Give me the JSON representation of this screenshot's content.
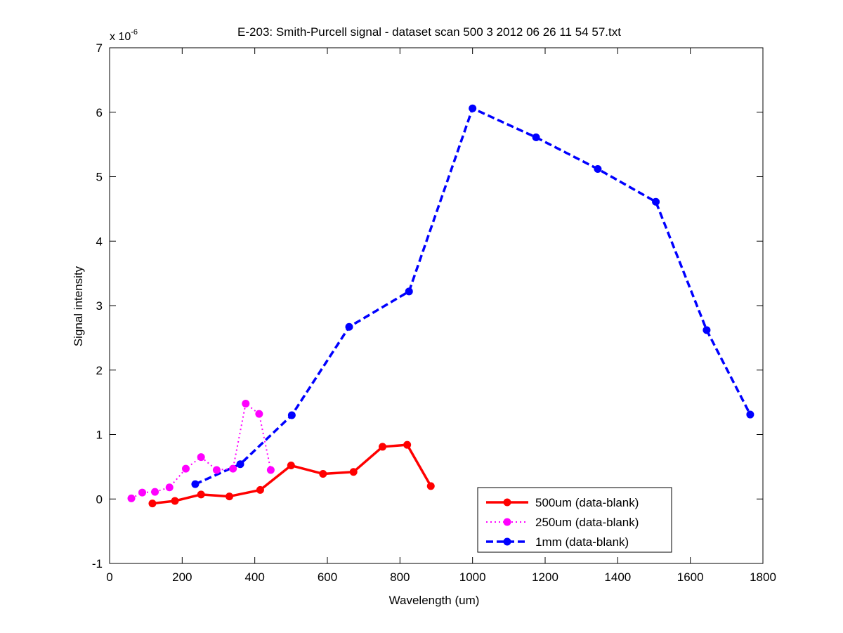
{
  "chart_data": {
    "type": "line",
    "title": "E-203: Smith-Purcell signal - dataset scan 500 3 2012 06 26 11 54 57.txt",
    "xlabel": "Wavelength (um)",
    "ylabel": "Signal intensity",
    "y_multiplier_label": "x 10",
    "y_multiplier_exponent": "-6",
    "xlim": [
      0,
      1800
    ],
    "ylim": [
      -1,
      7
    ],
    "x_ticks": [
      0,
      200,
      400,
      600,
      800,
      1000,
      1200,
      1400,
      1600,
      1800
    ],
    "y_ticks": [
      -1,
      0,
      1,
      2,
      3,
      4,
      5,
      6,
      7
    ],
    "grid": false,
    "legend_position": "bottom-right",
    "series": [
      {
        "name": "500um (data-blank)",
        "color": "#ff0000",
        "line_style": "solid",
        "x": [
          118,
          180,
          252,
          330,
          415,
          500,
          588,
          672,
          752,
          820,
          885
        ],
        "y": [
          -0.07,
          -0.03,
          0.07,
          0.04,
          0.14,
          0.52,
          0.39,
          0.42,
          0.81,
          0.84,
          0.2
        ]
      },
      {
        "name": "250um (data-blank)",
        "color": "#ff00ff",
        "line_style": "dotted",
        "x": [
          60,
          90,
          125,
          165,
          210,
          252,
          295,
          340,
          375,
          412,
          444
        ],
        "y": [
          0.01,
          0.1,
          0.11,
          0.18,
          0.47,
          0.65,
          0.45,
          0.47,
          1.48,
          1.32,
          0.45
        ]
      },
      {
        "name": "1mm (data-blank)",
        "color": "#0000ff",
        "line_style": "dashed",
        "x": [
          236,
          360,
          502,
          660,
          825,
          1000,
          1175,
          1345,
          1505,
          1645,
          1765
        ],
        "y": [
          0.23,
          0.54,
          1.3,
          2.67,
          3.22,
          6.06,
          5.61,
          5.12,
          4.61,
          2.62,
          1.31
        ]
      }
    ]
  }
}
